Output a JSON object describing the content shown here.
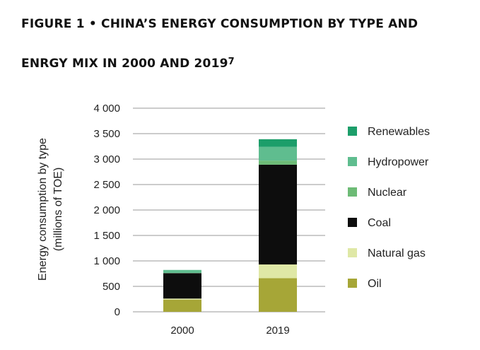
{
  "title_line1": "FIGURE 1 • CHINA’S ENERGY CONSUMPTION BY TYPE AND",
  "title_line2": "ENRGY MIX IN 2000 AND 2019",
  "title_footnote": "7",
  "chart_data": {
    "type": "bar",
    "stacked": true,
    "title": "FIGURE 1 • CHINA’S ENERGY CONSUMPTION BY TYPE AND ENRGY MIX IN 2000 AND 2019",
    "xlabel": "",
    "ylabel_line1": "Energy consumption by type",
    "ylabel_line2": "(millions of TOE)",
    "ylim": [
      0,
      4000
    ],
    "yticks": [
      0,
      500,
      1000,
      1500,
      2000,
      2500,
      3000,
      3500,
      4000
    ],
    "ytick_labels": [
      "0",
      "500",
      "1 000",
      "1 500",
      "2 000",
      "2 500",
      "3 000",
      "3 500",
      "4 000"
    ],
    "grid": true,
    "legend_position": "right",
    "categories": [
      "2000",
      "2019"
    ],
    "series": [
      {
        "name": "Oil",
        "color": "#a6a637",
        "values": [
          240,
          660
        ]
      },
      {
        "name": "Natural gas",
        "color": "#dfe8a6",
        "values": [
          20,
          270
        ]
      },
      {
        "name": "Coal",
        "color": "#0d0d0d",
        "values": [
          500,
          1960
        ]
      },
      {
        "name": "Nuclear",
        "color": "#6dbb76",
        "values": [
          5,
          80
        ]
      },
      {
        "name": "Hydropower",
        "color": "#5fbd8f",
        "values": [
          55,
          270
        ]
      },
      {
        "name": "Renewables",
        "color": "#1c9e6a",
        "values": [
          2,
          150
        ]
      }
    ]
  }
}
